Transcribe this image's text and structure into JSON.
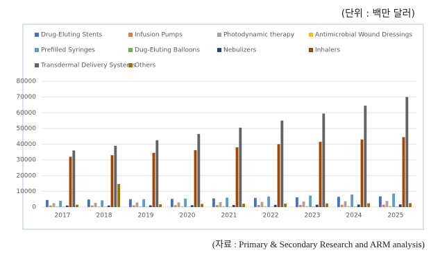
{
  "unit_note": "(단위 : 백만 달러)",
  "source": "(자료 : Primary & Secondary Research and ARM analysis)",
  "chart_data": {
    "type": "bar",
    "categories": [
      "2017",
      "2018",
      "2019",
      "2020",
      "2021",
      "2022",
      "2023",
      "2024",
      "2025"
    ],
    "series": [
      {
        "name": "Drug-Eluting Stents",
        "color": "#4472c4",
        "values": [
          4500,
          4800,
          5000,
          5200,
          5500,
          5800,
          6200,
          6500,
          6800
        ]
      },
      {
        "name": "Infusion Pumps",
        "color": "#ed7d31",
        "values": [
          1000,
          1000,
          1100,
          1200,
          1200,
          1300,
          1300,
          1400,
          1500
        ]
      },
      {
        "name": "Photodynamic therapy",
        "color": "#a5a5a5",
        "values": [
          2500,
          2700,
          2900,
          3000,
          3100,
          3300,
          3500,
          3700,
          3900
        ]
      },
      {
        "name": "Antimicrobial Wound Dressings",
        "color": "#ffc000",
        "values": [
          500,
          500,
          500,
          600,
          600,
          600,
          700,
          700,
          700
        ]
      },
      {
        "name": "Prefilled Syringes",
        "color": "#5b9bd5",
        "values": [
          4000,
          4300,
          5000,
          5400,
          6000,
          6700,
          7300,
          8000,
          8600
        ]
      },
      {
        "name": "Dug-Eluting Balloons",
        "color": "#70ad47",
        "values": [
          200,
          200,
          200,
          200,
          250,
          250,
          300,
          300,
          300
        ]
      },
      {
        "name": "Nebulizers",
        "color": "#264478",
        "values": [
          1000,
          1000,
          1100,
          1200,
          1300,
          1400,
          1500,
          1600,
          1700
        ]
      },
      {
        "name": "Inhalers",
        "color": "#9e480e",
        "values": [
          32000,
          33000,
          34500,
          36200,
          38000,
          40000,
          41500,
          43000,
          44500
        ]
      },
      {
        "name": "Transdermal Delivery Systems",
        "color": "#636363",
        "values": [
          36000,
          39000,
          42500,
          46500,
          50500,
          55000,
          59500,
          64500,
          70000
        ]
      },
      {
        "name": "Others",
        "color": "#997300",
        "values": [
          1500,
          14700,
          1800,
          2000,
          2100,
          2200,
          2300,
          2400,
          2500
        ]
      }
    ],
    "ylim": [
      0,
      80000
    ],
    "yticks": [
      0,
      10000,
      20000,
      30000,
      40000,
      50000,
      60000,
      70000,
      80000
    ],
    "grid": true
  }
}
